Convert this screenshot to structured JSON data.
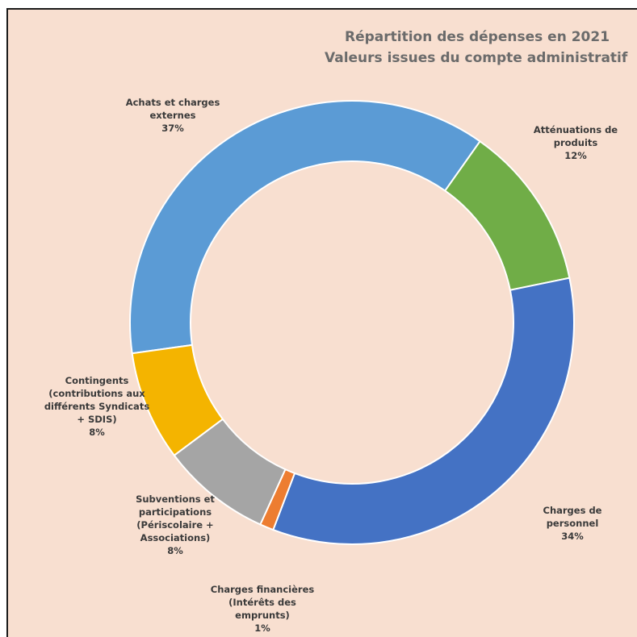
{
  "chart_data": {
    "type": "pie",
    "title": "Répartition des dépenses en 2021",
    "subtitle": "Valeurs issues du compte administratif",
    "slices": [
      {
        "label": "Achats et charges\nexternes",
        "value": 37,
        "display": "37%",
        "color": "#5b9bd5"
      },
      {
        "label": "Atténuations de\nproduits",
        "value": 12,
        "display": "12%",
        "color": "#70ad47"
      },
      {
        "label": "Charges de\npersonnel",
        "value": 34,
        "display": "34%",
        "color": "#4472c4"
      },
      {
        "label": "Charges financières\n(Intérêts des\nemprunts)",
        "value": 1,
        "display": "1%",
        "color": "#ed7d31"
      },
      {
        "label": "Subventions et\nparticipations\n(Périscolaire +\nAssociations)",
        "value": 8,
        "display": "8%",
        "color": "#a5a5a5"
      },
      {
        "label": "Contingents\n(contributions aux\ndifférents Syndicats\n+ SDIS)",
        "value": 8,
        "display": "8%",
        "color": "#f4b400"
      }
    ]
  }
}
